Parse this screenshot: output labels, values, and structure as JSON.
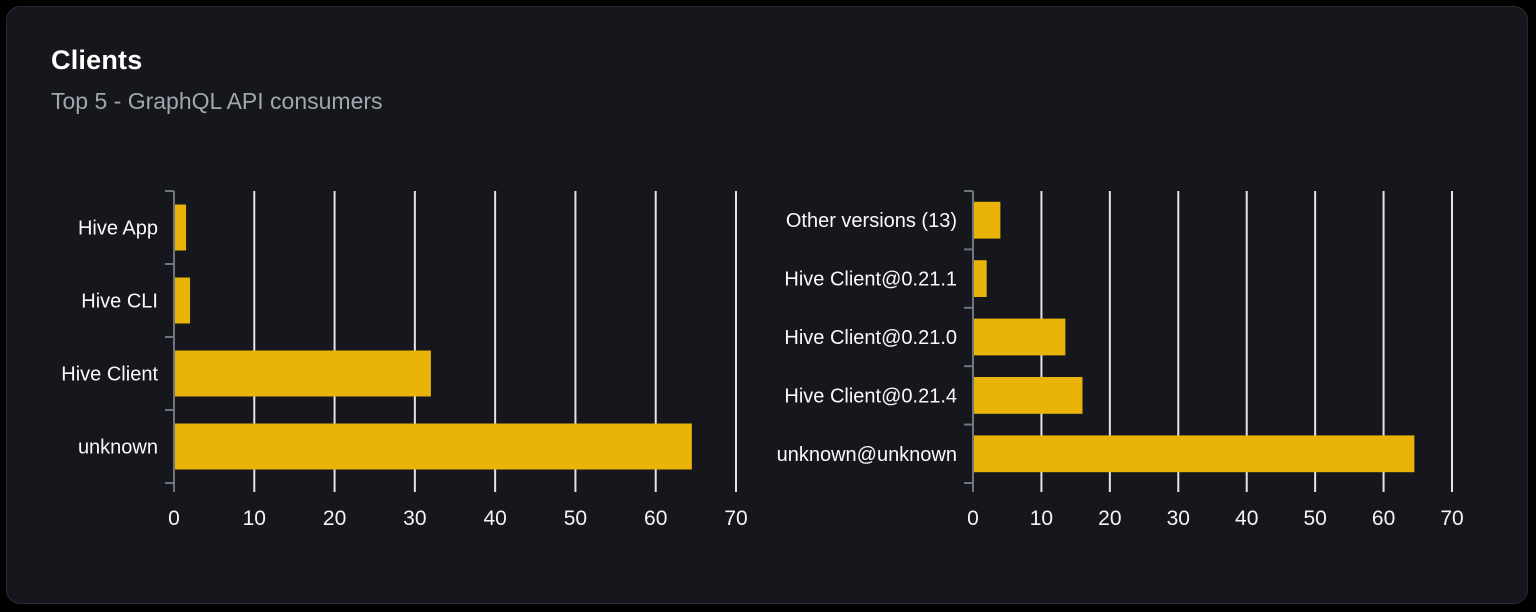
{
  "card": {
    "title": "Clients",
    "subtitle": "Top 5 - GraphQL API consumers"
  },
  "colors": {
    "page_bg": "#000000",
    "card_bg": "#15171d",
    "card_border": "#262a33",
    "title": "#ffffff",
    "subtitle": "#a2a6ad",
    "bar": "#e9b308",
    "gridline": "#e4e5e9",
    "axis": "#70747e",
    "category_label": "#fafafa",
    "tick_label": "#f4f4f5"
  },
  "chart_data": [
    {
      "type": "bar",
      "orientation": "horizontal",
      "title": "",
      "xlabel": "",
      "ylabel": "",
      "categories": [
        "Hive App",
        "Hive CLI",
        "Hive Client",
        "unknown"
      ],
      "values": [
        1.5,
        2,
        32,
        64.5
      ],
      "xlim": [
        0,
        70
      ],
      "xticks": [
        0,
        10,
        20,
        30,
        40,
        50,
        60,
        70
      ],
      "grid": true,
      "legend": false
    },
    {
      "type": "bar",
      "orientation": "horizontal",
      "title": "",
      "xlabel": "",
      "ylabel": "",
      "categories": [
        "Other versions (13)",
        "Hive Client@0.21.1",
        "Hive Client@0.21.0",
        "Hive Client@0.21.4",
        "unknown@unknown"
      ],
      "values": [
        4,
        2,
        13.5,
        16,
        64.5
      ],
      "xlim": [
        0,
        70
      ],
      "xticks": [
        0,
        10,
        20,
        30,
        40,
        50,
        60,
        70
      ],
      "grid": true,
      "legend": false
    }
  ]
}
